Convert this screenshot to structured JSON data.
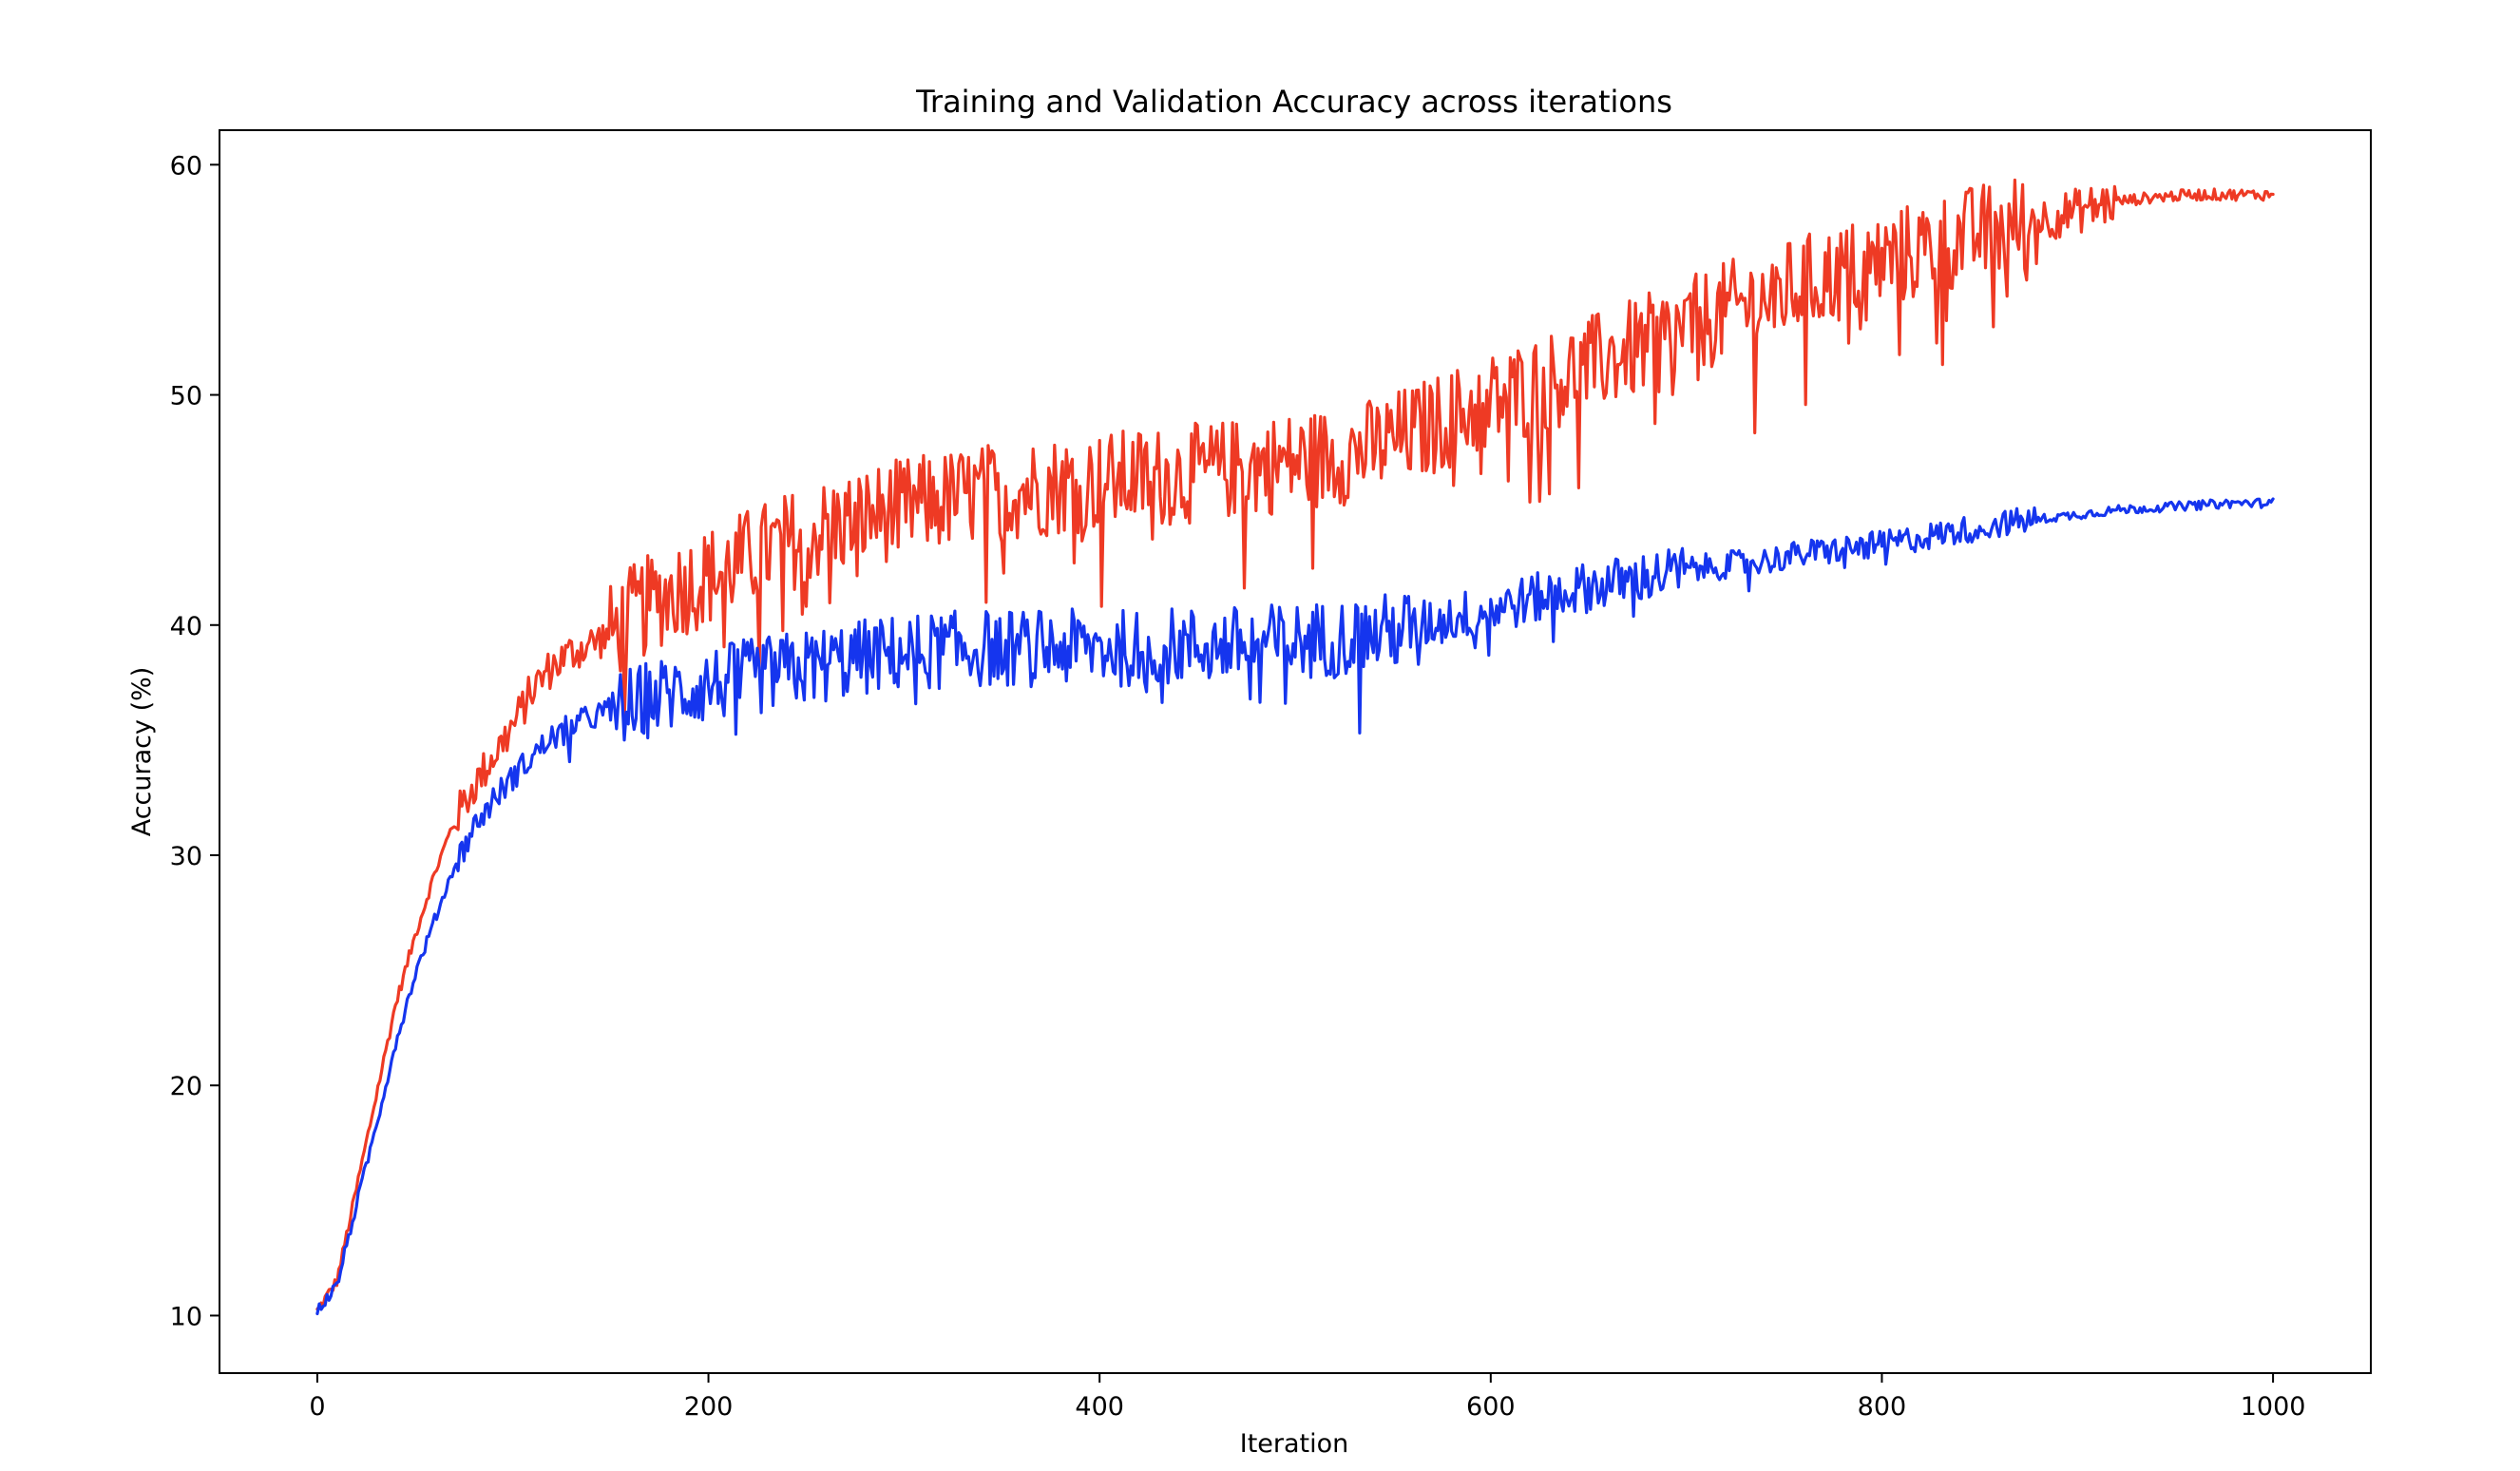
{
  "chart_data": {
    "type": "line",
    "title": "Training and Validation Accuracy across iterations",
    "xlabel": "Iteration",
    "ylabel": "Accuracy (%)",
    "xlim": [
      -50,
      1050
    ],
    "ylim": [
      7.5,
      61.5
    ],
    "xticks": [
      0,
      200,
      400,
      600,
      800,
      1000
    ],
    "yticks": [
      10,
      20,
      30,
      40,
      50,
      60
    ],
    "grid": false,
    "legend": "none",
    "series": [
      {
        "color": "#ee3a24",
        "x": [
          0,
          10,
          20,
          30,
          40,
          50,
          60,
          70,
          80,
          90,
          100,
          110,
          120,
          130,
          140,
          150,
          160,
          170,
          180,
          190,
          200,
          220,
          240,
          260,
          280,
          300,
          320,
          340,
          360,
          380,
          400,
          420,
          440,
          460,
          480,
          500,
          520,
          540,
          560,
          580,
          600,
          620,
          640,
          660,
          680,
          700,
          720,
          740,
          760,
          780,
          800,
          820,
          840,
          860,
          880,
          900,
          920,
          940,
          960,
          980,
          1000
        ],
        "y": [
          10.2,
          11.5,
          15.5,
          19.5,
          23.5,
          26.5,
          29.2,
          31.5,
          33.0,
          34.3,
          35.6,
          37.2,
          38.2,
          38.8,
          39.2,
          39.6,
          40.4,
          40.9,
          41.4,
          41.8,
          42.1,
          42.9,
          43.6,
          44.2,
          44.7,
          45.1,
          45.4,
          45.7,
          45.9,
          46.1,
          46.2,
          46.4,
          46.5,
          46.7,
          46.9,
          47.1,
          47.3,
          47.7,
          48.3,
          49.0,
          49.7,
          50.3,
          50.9,
          51.6,
          52.2,
          52.9,
          53.6,
          54.2,
          54.8,
          55.3,
          55.8,
          56.3,
          56.8,
          57.2,
          57.6,
          58.0,
          58.4,
          58.6,
          58.7,
          58.7,
          58.7
        ]
      },
      {
        "color": "#1535ee",
        "x": [
          0,
          10,
          20,
          30,
          40,
          50,
          60,
          70,
          80,
          90,
          100,
          110,
          120,
          130,
          140,
          150,
          160,
          170,
          180,
          190,
          200,
          220,
          240,
          260,
          280,
          300,
          320,
          340,
          360,
          380,
          400,
          420,
          440,
          460,
          480,
          500,
          520,
          540,
          560,
          580,
          600,
          620,
          640,
          660,
          680,
          700,
          720,
          740,
          760,
          780,
          800,
          820,
          840,
          860,
          880,
          900,
          920,
          940,
          960,
          980,
          1000
        ],
        "y": [
          10.2,
          11.3,
          14.8,
          18.2,
          21.8,
          24.8,
          27.2,
          29.5,
          31.2,
          32.4,
          33.4,
          34.3,
          35.1,
          35.6,
          36.0,
          36.3,
          36.5,
          36.8,
          37.0,
          37.2,
          37.4,
          37.7,
          38.0,
          38.3,
          38.6,
          38.8,
          38.9,
          39.0,
          39.0,
          39.0,
          39.0,
          39.0,
          39.1,
          39.1,
          39.2,
          39.3,
          39.4,
          39.6,
          39.9,
          40.3,
          40.7,
          41.1,
          41.5,
          41.8,
          42.1,
          42.4,
          42.6,
          42.8,
          43.1,
          43.3,
          43.5,
          43.8,
          44.1,
          44.4,
          44.6,
          44.8,
          45.0,
          45.1,
          45.2,
          45.3,
          45.3
        ]
      }
    ]
  }
}
